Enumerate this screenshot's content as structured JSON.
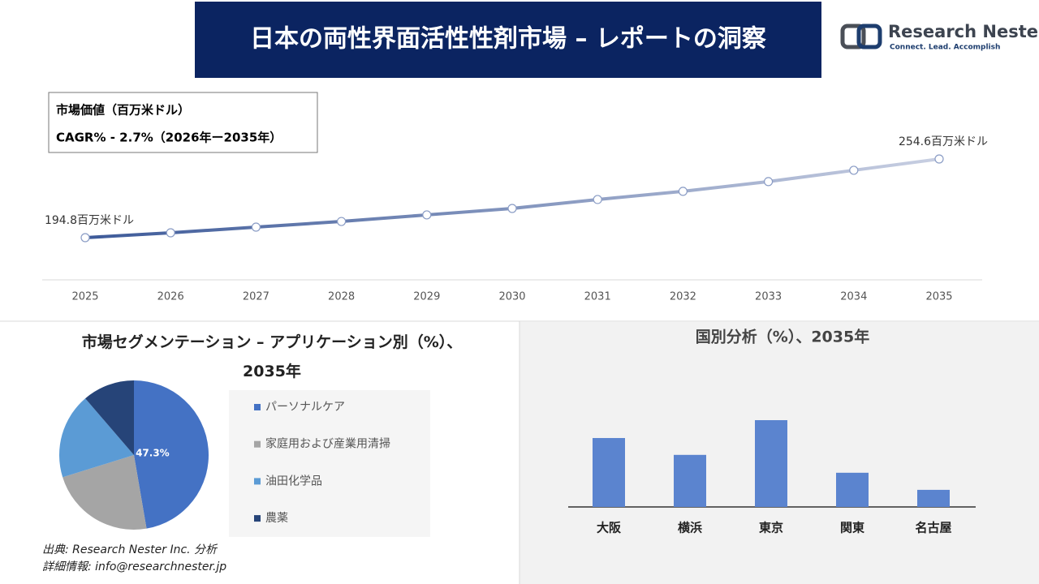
{
  "header": {
    "title": "日本の両性界面活性性剤市場 – レポートの洞察",
    "logo_name": "Research Nester",
    "logo_tagline": "Connect. Lead. Accomplish"
  },
  "chart_data": [
    {
      "type": "line",
      "title": "市場価値（百万米ドル）",
      "subtitle": "CAGR% - 2.7%（2026年ー2035年）",
      "x": [
        2025,
        2026,
        2027,
        2028,
        2029,
        2030,
        2031,
        2032,
        2033,
        2034,
        2035
      ],
      "values": [
        194.8,
        198.5,
        202.8,
        207.1,
        212.1,
        217.0,
        223.8,
        230.0,
        237.4,
        246.0,
        254.6
      ],
      "value_labels": [
        "194.8百万米ドル",
        null,
        null,
        null,
        null,
        null,
        null,
        null,
        null,
        null,
        "254.6百万米ドル"
      ],
      "color": "#3d5a99"
    },
    {
      "type": "pie",
      "title": "市場セグメンテーション – アプリケーション別（%）、2035年",
      "categories": [
        "パーソナルケア",
        "家庭用および産業用清掃",
        "油田化学品",
        "農薬"
      ],
      "values": [
        47.3,
        22.9,
        18.5,
        11.3
      ],
      "value_labels": [
        "47.3%",
        null,
        null,
        null
      ],
      "colors": [
        "#4472c4",
        "#a5a5a5",
        "#5b9bd5",
        "#264478"
      ]
    },
    {
      "type": "bar",
      "title": "国別分析（%）、2035年",
      "categories": [
        "大阪",
        "横浜",
        "東京",
        "関東",
        "名古屋"
      ],
      "values": [
        26.6,
        20.1,
        33.5,
        13.2,
        6.6
      ],
      "color": "#5b84cf"
    }
  ],
  "footer": {
    "source": "出典: Research Nester Inc. 分析",
    "contact": "詳細情報: info@researchnester.jp"
  }
}
